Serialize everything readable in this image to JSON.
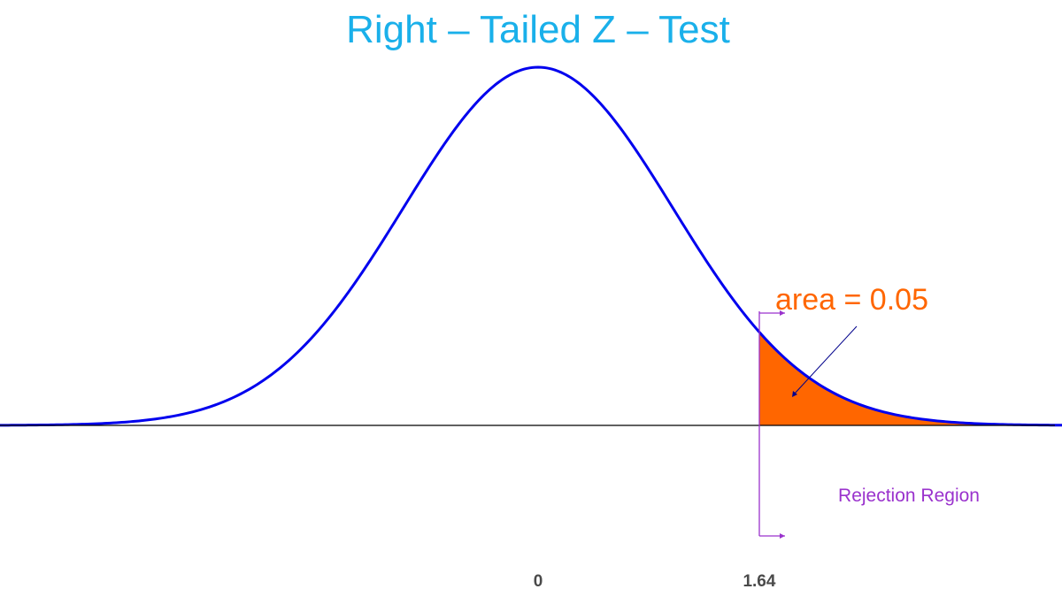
{
  "chart_data": {
    "type": "area",
    "title": "Right – Tailed Z – Test",
    "distribution": "standard-normal",
    "xlim": [
      -4.2,
      4.2
    ],
    "critical_value": 1.64,
    "tick_labels": [
      {
        "x": 0,
        "label": "0"
      },
      {
        "x": 1.64,
        "label": "1.64"
      }
    ],
    "shaded_region": {
      "from": 1.64,
      "to": 4.2,
      "area_label": "area = 0.05"
    },
    "annotation": "Rejection Region",
    "grid": false,
    "legend": "none"
  },
  "colors": {
    "title": "#1ab0ea",
    "curve": "#0000ee",
    "fill": "#ff6600",
    "area_label": "#ff6600",
    "bracket": "#9a32cd",
    "annotation": "#9a32cd",
    "axis": "#000000",
    "tick_text": "#4a4a4a",
    "pointer": "#00008b"
  }
}
